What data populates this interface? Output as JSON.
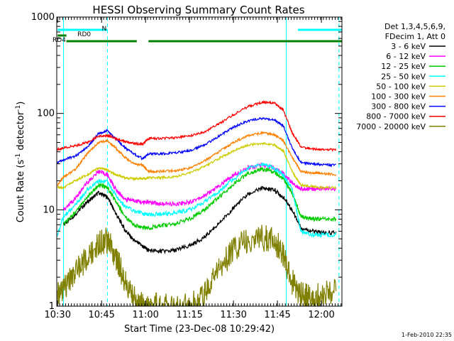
{
  "chart_data": {
    "type": "line",
    "title": "HESSI Observing Summary Count Rates",
    "xlabel": "Start Time (23-Dec-08 10:29:42)",
    "ylabel_main": "Count Rate (s",
    "ylabel_sup1": "-1",
    "ylabel_mid": " detector",
    "ylabel_sup2": "-1",
    "ylabel_end": ")",
    "yscale": "log",
    "ylim": [
      1,
      1000
    ],
    "xlim": [
      "10:29:42",
      "12:07:00"
    ],
    "x_ticks": [
      "10:30",
      "10:45",
      "11:00",
      "11:15",
      "11:30",
      "11:45",
      "12:00"
    ],
    "y_ticks": [
      "1",
      "10",
      "100",
      "1000"
    ],
    "legend": {
      "header": [
        "Det 1,3,4,5,6,9,",
        "FDecim 1, Att 0"
      ],
      "placement": "right"
    },
    "flags": [
      {
        "label": "N",
        "color": "#00ffff",
        "start": "10:30",
        "end": "10:47"
      },
      {
        "label": "",
        "color": "#00ffff",
        "start": "11:52",
        "end": "12:07"
      },
      {
        "label": "RD0",
        "color": "#008000",
        "start": "10:30",
        "end": "10:33"
      },
      {
        "label": "RD4",
        "color": "#008000",
        "start": "10:33",
        "end": "10:57"
      },
      {
        "label": "",
        "color": "#008000",
        "start": "11:01",
        "end": "12:07"
      }
    ],
    "vlines_solid": [
      "10:32",
      "11:48"
    ],
    "vlines_dashed": [
      "10:47",
      "12:06"
    ],
    "x": [
      "10:30",
      "10:32",
      "10:36",
      "10:40",
      "10:44",
      "10:47",
      "10:50",
      "10:53",
      "10:56",
      "10:59",
      "11:01",
      "11:05",
      "11:10",
      "11:15",
      "11:20",
      "11:25",
      "11:30",
      "11:35",
      "11:40",
      "11:44",
      "11:47",
      "11:50",
      "11:53",
      "11:57",
      "12:00",
      "12:05"
    ],
    "series": [
      {
        "name": "3 - 6 keV",
        "color": "#000000",
        "values": [
          null,
          7,
          9,
          12,
          15,
          13.5,
          9,
          6.2,
          4.8,
          4.2,
          3.8,
          3.7,
          3.8,
          4.2,
          5.2,
          7.2,
          10.5,
          14.5,
          16.8,
          16,
          13.5,
          10,
          6.5,
          6,
          5.8,
          5.8
        ]
      },
      {
        "name": "6 - 12 keV",
        "color": "#ff00ff",
        "values": [
          null,
          10,
          13,
          19,
          25,
          23,
          16,
          13,
          12.5,
          12,
          12,
          11.5,
          11.5,
          12,
          14,
          17.5,
          23,
          27.5,
          29,
          27,
          24,
          19,
          16.5,
          16.5,
          16.5,
          16.5
        ]
      },
      {
        "name": "12 - 25 keV",
        "color": "#00cc00",
        "values": [
          null,
          7,
          9.5,
          13.5,
          18,
          17,
          12,
          8.5,
          7,
          6.5,
          6.5,
          6.8,
          7.2,
          8,
          10,
          13.5,
          18.5,
          24,
          26.5,
          24.5,
          21,
          15,
          8.5,
          8,
          8,
          8
        ]
      },
      {
        "name": "25 - 50 keV",
        "color": "#00ffff",
        "values": [
          5.5,
          8.5,
          11,
          16,
          20,
          19.5,
          14,
          10.8,
          9.8,
          9.2,
          9,
          9,
          9.3,
          10,
          12,
          15.5,
          21,
          27,
          29.5,
          27,
          23,
          16.5,
          6,
          5.5,
          5.5,
          5.5
        ]
      },
      {
        "name": "50 - 100 keV",
        "color": "#cccc00",
        "values": [
          17,
          17,
          20,
          23,
          27,
          26,
          23,
          21.5,
          21,
          21,
          21.5,
          21.5,
          22,
          24,
          28,
          34,
          41,
          47,
          49,
          47,
          41,
          25,
          18,
          17.5,
          17,
          17
        ]
      },
      {
        "name": "100 - 300 keV",
        "color": "#ff8000",
        "values": [
          18,
          22,
          26,
          38,
          50,
          52,
          43,
          35,
          30,
          29,
          25,
          25,
          25.5,
          27,
          32,
          40,
          50,
          59,
          63,
          60,
          52,
          35,
          25,
          24,
          24,
          23
        ]
      },
      {
        "name": "300 - 800 keV",
        "color": "#0000ff",
        "values": [
          31,
          33,
          36,
          44,
          62,
          66,
          54,
          44,
          38,
          34,
          38,
          38,
          39,
          41,
          47,
          58,
          72,
          84,
          89,
          86,
          74,
          44,
          31,
          30,
          29.5,
          29
        ]
      },
      {
        "name": "800 - 7000 keV",
        "color": "#ff0000",
        "values": [
          42,
          44,
          46,
          50,
          58,
          59,
          55,
          51,
          49,
          48,
          55,
          55,
          56,
          58,
          64,
          78,
          97,
          118,
          131,
          128,
          108,
          63,
          45,
          43,
          42,
          42
        ]
      },
      {
        "name": "7000 - 20000 keV",
        "color": "#808000",
        "values": [
          1.3,
          1.5,
          2.2,
          3.2,
          4.5,
          4.8,
          3.2,
          1.8,
          1.2,
          1,
          1,
          1,
          1,
          1,
          1.3,
          2.5,
          3.8,
          4.8,
          5.1,
          4.8,
          3.5,
          1.8,
          1.3,
          1.2,
          1.3,
          1.4
        ]
      }
    ]
  },
  "footer": {
    "timestamp": "1-Feb-2010 22:35"
  }
}
